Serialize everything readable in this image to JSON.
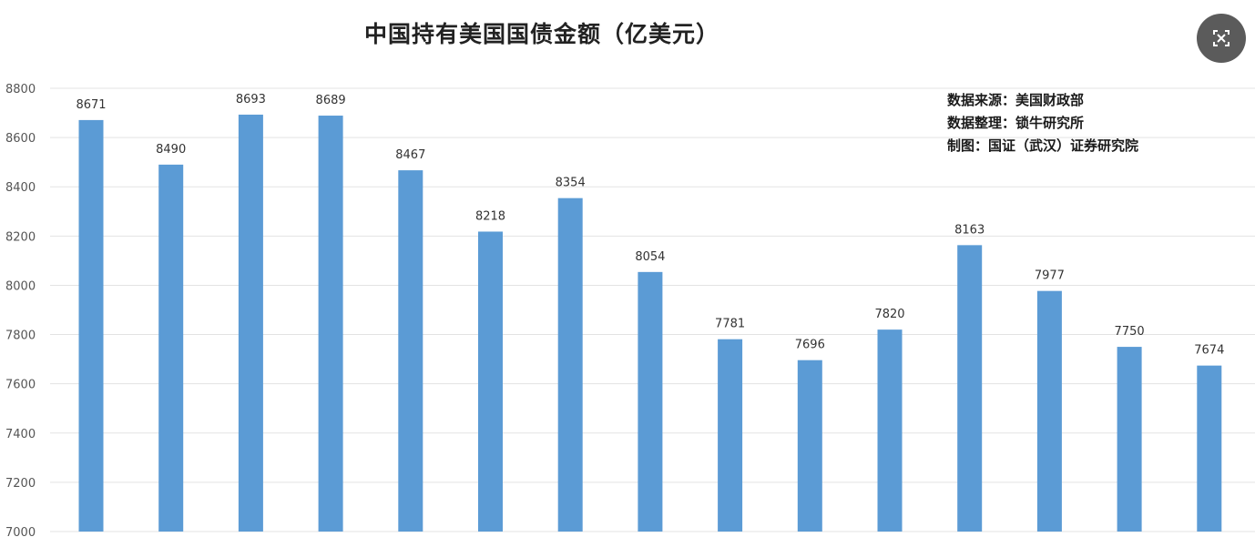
{
  "chart_data": {
    "type": "bar",
    "title": "中国持有美国国债金额（亿美元）",
    "categories": [
      "",
      "",
      "",
      "",
      "",
      "",
      "",
      "",
      "",
      "",
      "",
      "",
      "",
      "",
      ""
    ],
    "values": [
      8671,
      8490,
      8693,
      8689,
      8467,
      8218,
      8354,
      8054,
      7781,
      7696,
      7820,
      8163,
      7977,
      7750,
      7674
    ],
    "data_labels": [
      "8671",
      "8490",
      "8693",
      "8689",
      "8467",
      "8218",
      "8354",
      "8054",
      "7781",
      "7696",
      "7820",
      "8163",
      "7977",
      "7750",
      "7674"
    ],
    "ylim": [
      7000,
      8800
    ],
    "yticks": [
      "7000",
      "7200",
      "7400",
      "7600",
      "7800",
      "8000",
      "8200",
      "8400",
      "8600",
      "8800"
    ],
    "grid": true,
    "bar_color": "#5b9bd5",
    "notes": [
      "数据来源：美国财政部",
      "数据整理：锁牛研究所",
      "制图：国证（武汉）证券研究院"
    ]
  },
  "ui": {
    "close_icon": "close-image-icon"
  }
}
